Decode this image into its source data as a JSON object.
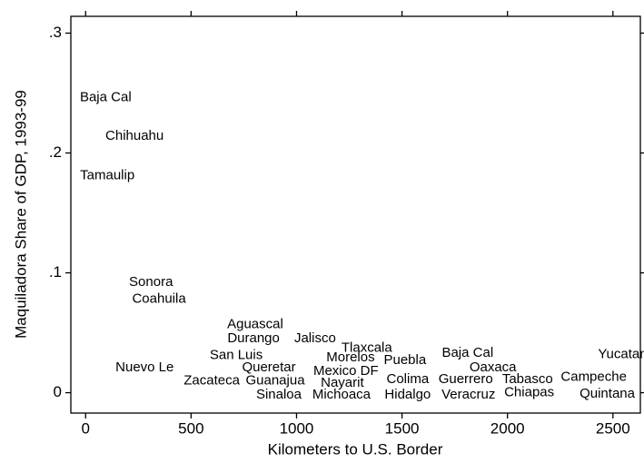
{
  "chart_data": {
    "type": "scatter",
    "x_label": "Kilometers to U.S. Border",
    "y_label": "Maquiladora Share of GDP, 1993-99",
    "point_labels": [
      "Baja Cal",
      "Chihuahu",
      "Tamaulip",
      "Sonora",
      "Coahuila",
      "Aguascal",
      "Durango",
      "Jalisco",
      "Tlaxcala",
      "Morelos",
      "Puebla",
      "Baja Cal",
      "Yucatan",
      "San Luis",
      "Nuevo Le",
      "Queretar",
      "Mexico DF",
      "Oaxaca",
      "Zacateca",
      "Guanajua",
      "Nayarit",
      "Colima",
      "Guerrero",
      "Tabasco",
      "Campeche",
      "Sinaloa",
      "Michoaca",
      "Hidalgo",
      "Veracruz",
      "Chiapas",
      "Quintana"
    ],
    "x": [
      95,
      232,
      103,
      310,
      348,
      804,
      796,
      1088,
      1333,
      1256,
      1514,
      1811,
      2546,
      714,
      280,
      869,
      1234,
      1931,
      598,
      899,
      1217,
      1527,
      1802,
      2095,
      2409,
      916,
      1213,
      1527,
      1815,
      2103,
      2473
    ],
    "y": [
      0.246,
      0.214,
      0.181,
      0.092,
      0.078,
      0.057,
      0.045,
      0.045,
      0.037,
      0.029,
      0.027,
      0.033,
      0.032,
      0.031,
      0.021,
      0.021,
      0.018,
      0.021,
      0.01,
      0.01,
      0.008,
      0.011,
      0.011,
      0.011,
      0.013,
      -0.002,
      -0.002,
      -0.002,
      -0.002,
      0.0,
      -0.001
    ],
    "color": "#000000",
    "xlim": [
      -70,
      2630
    ],
    "ylim": [
      -0.017,
      0.314
    ],
    "xticks": [
      0,
      500,
      1000,
      1500,
      2000,
      2500
    ],
    "yticks": [
      0,
      {
        "value": 0.1,
        "label": ".1"
      },
      {
        "value": 0.2,
        "label": ".2"
      },
      {
        "value": 0.3,
        "label": ".3"
      }
    ]
  }
}
